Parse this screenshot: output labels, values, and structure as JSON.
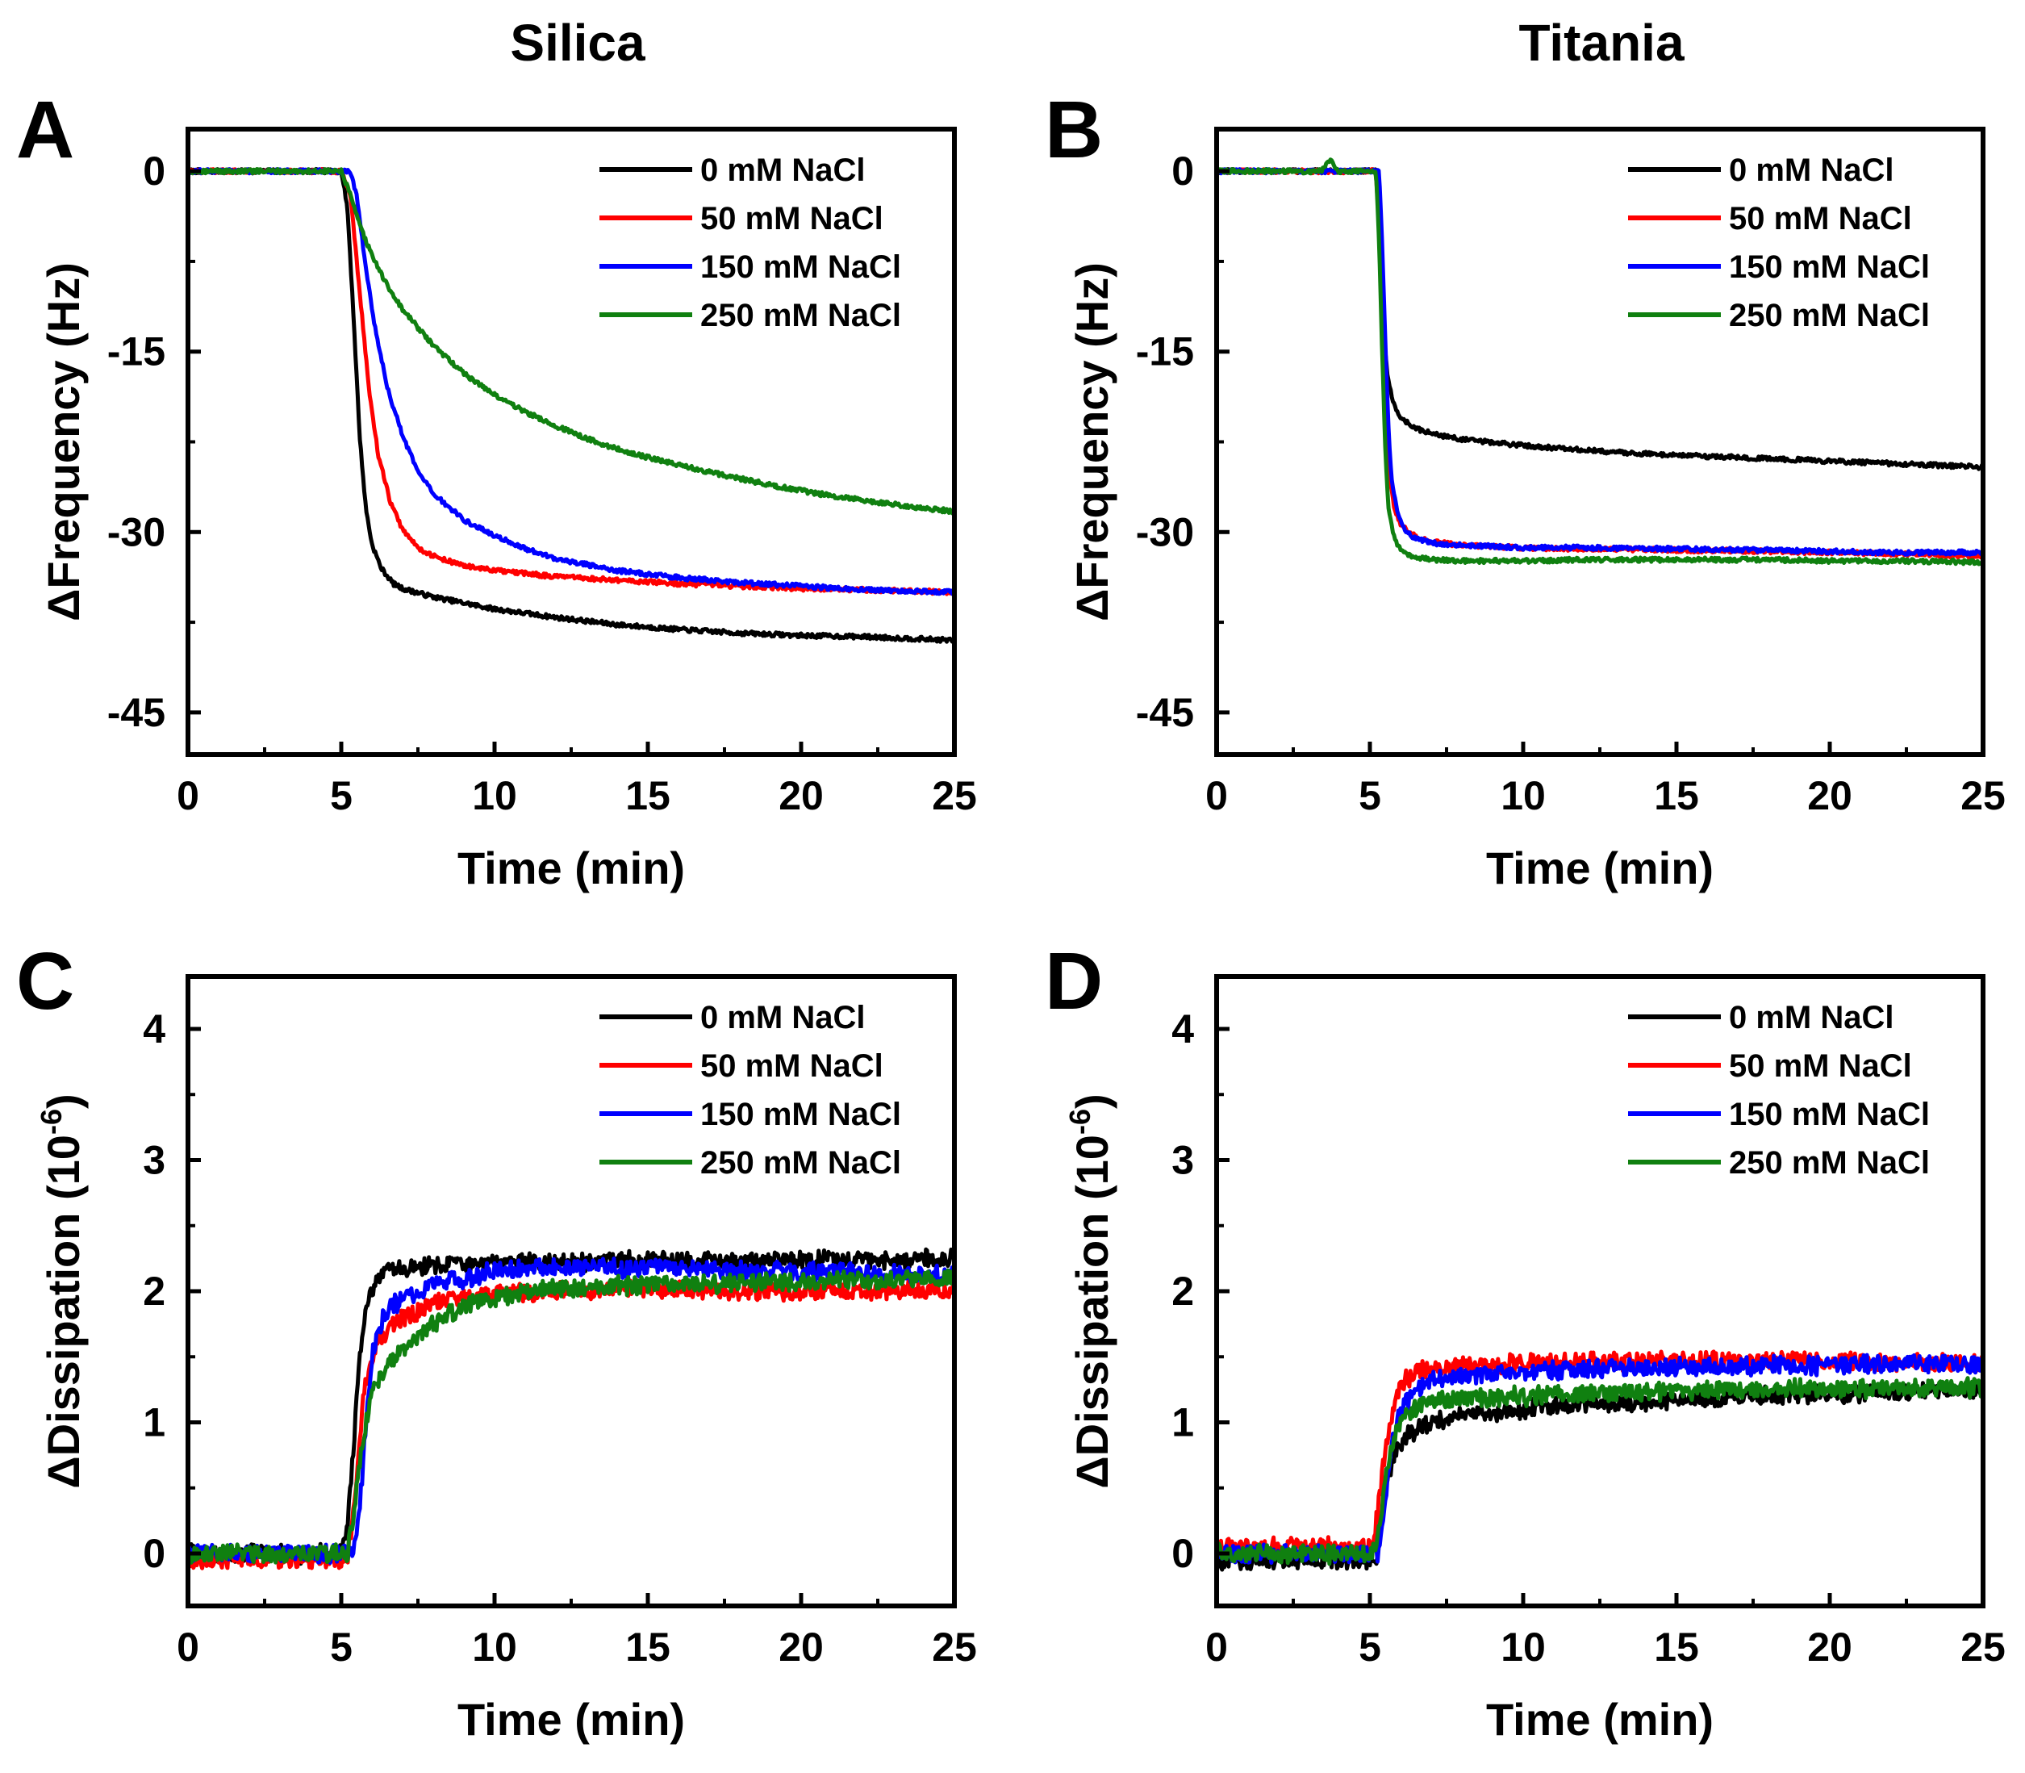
{
  "figure": {
    "column_titles": [
      "Silica",
      "Titania"
    ]
  },
  "legend_labels": [
    "0 mM NaCl",
    "50 mM NaCl",
    "150 mM NaCl",
    "250 mM NaCl"
  ],
  "series_colors": {
    "0 mM NaCl": "#000000",
    "50 mM NaCl": "#ff0000",
    "150 mM NaCl": "#0000ff",
    "250 mM NaCl": "#108010"
  },
  "chart_data": [
    {
      "panel": "A",
      "type": "line",
      "title": "Silica",
      "xlabel": "Time (min)",
      "ylabel": "ΔFrequency (Hz)",
      "xlim": [
        0,
        25
      ],
      "ylim": [
        -48.5,
        3.5
      ],
      "xticks": [
        0,
        5,
        10,
        15,
        20,
        25
      ],
      "yticks": [
        0,
        -15,
        -30,
        -45
      ],
      "legend_position": "top-right",
      "series": [
        {
          "name": "0 mM NaCl",
          "x": [
            0,
            5,
            5.2,
            5.4,
            5.6,
            5.8,
            6.0,
            6.3,
            6.7,
            7,
            8,
            9,
            10,
            12,
            14,
            16,
            18,
            20,
            22,
            24,
            25
          ],
          "values": [
            0,
            0,
            -3,
            -12,
            -22,
            -28,
            -31,
            -33,
            -34.3,
            -34.7,
            -35.4,
            -35.9,
            -36.4,
            -37.1,
            -37.7,
            -38.1,
            -38.4,
            -38.6,
            -38.7,
            -38.9,
            -39.0
          ]
        },
        {
          "name": "50 mM NaCl",
          "x": [
            0,
            5,
            5.3,
            5.6,
            5.9,
            6.2,
            6.6,
            7,
            7.5,
            8,
            9,
            10,
            12,
            14,
            16,
            18,
            20,
            22,
            25
          ],
          "values": [
            0,
            0,
            -2,
            -10,
            -18,
            -23.5,
            -27.5,
            -29.8,
            -31.3,
            -32.0,
            -32.8,
            -33.2,
            -33.7,
            -34.0,
            -34.3,
            -34.5,
            -34.7,
            -34.8,
            -35.0
          ]
        },
        {
          "name": "150 mM NaCl",
          "x": [
            0,
            5.3,
            5.5,
            5.8,
            6.1,
            6.5,
            7,
            7.5,
            8,
            9,
            10,
            11,
            12,
            14,
            16,
            18,
            20,
            22,
            25
          ],
          "values": [
            0,
            0,
            -2,
            -8,
            -13,
            -18,
            -22,
            -25,
            -26.8,
            -29.0,
            -30.3,
            -31.4,
            -32.2,
            -33.2,
            -33.8,
            -34.2,
            -34.5,
            -34.8,
            -35.0
          ]
        },
        {
          "name": "250 mM NaCl",
          "x": [
            0,
            5,
            5.3,
            5.6,
            6.0,
            6.5,
            7,
            8,
            9,
            10,
            11,
            12,
            13,
            14,
            15,
            17,
            19,
            21,
            23,
            25
          ],
          "values": [
            0,
            0,
            -2,
            -4.5,
            -7,
            -9.5,
            -11.5,
            -14.5,
            -16.8,
            -18.6,
            -20.0,
            -21.2,
            -22.2,
            -23.1,
            -23.8,
            -25.0,
            -26.1,
            -27.0,
            -27.7,
            -28.3
          ]
        }
      ]
    },
    {
      "panel": "B",
      "type": "line",
      "title": "Titania",
      "xlabel": "Time (min)",
      "ylabel": "ΔFrequency (Hz)",
      "xlim": [
        0,
        25
      ],
      "ylim": [
        -48.5,
        3.5
      ],
      "xticks": [
        0,
        5,
        10,
        15,
        20,
        25
      ],
      "yticks": [
        0,
        -15,
        -30,
        -45
      ],
      "legend_position": "top-right",
      "series": [
        {
          "name": "0 mM NaCl",
          "x": [
            0,
            5.2,
            5.3,
            5.4,
            5.5,
            5.6,
            5.8,
            6.0,
            6.5,
            7,
            8,
            10,
            12,
            14,
            16,
            18,
            20,
            22,
            25
          ],
          "values": [
            0,
            0,
            -4,
            -10,
            -15,
            -17.5,
            -19.5,
            -20.5,
            -21.4,
            -21.8,
            -22.3,
            -22.8,
            -23.2,
            -23.5,
            -23.7,
            -23.9,
            -24.1,
            -24.3,
            -24.6
          ]
        },
        {
          "name": "50 mM NaCl",
          "x": [
            0,
            5.2,
            5.3,
            5.4,
            5.5,
            5.6,
            5.8,
            6.0,
            6.3,
            6.6,
            7,
            8,
            10,
            12,
            15,
            18,
            20,
            22,
            25
          ],
          "values": [
            0,
            0,
            -5,
            -13,
            -20,
            -25,
            -28,
            -29.3,
            -30.1,
            -30.5,
            -30.8,
            -31.1,
            -31.3,
            -31.4,
            -31.5,
            -31.6,
            -31.7,
            -31.8,
            -32.0
          ]
        },
        {
          "name": "150 mM NaCl",
          "x": [
            0,
            5.3,
            5.4,
            5.5,
            5.6,
            5.7,
            5.9,
            6.1,
            6.4,
            6.7,
            7,
            8,
            10,
            12,
            15,
            18,
            20,
            22,
            25
          ],
          "values": [
            0,
            0,
            -6,
            -14,
            -21,
            -25.5,
            -28.5,
            -29.7,
            -30.4,
            -30.7,
            -30.9,
            -31.1,
            -31.3,
            -31.3,
            -31.4,
            -31.5,
            -31.6,
            -31.7,
            -31.7
          ]
        },
        {
          "name": "250 mM NaCl",
          "x": [
            0,
            3.4,
            3.7,
            4.0,
            5.2,
            5.3,
            5.4,
            5.5,
            5.6,
            5.8,
            6.0,
            6.3,
            7,
            8,
            10,
            12,
            15,
            18,
            20,
            22,
            25
          ],
          "values": [
            0,
            0,
            1.0,
            0,
            0,
            -6,
            -15,
            -23,
            -28,
            -30.5,
            -31.5,
            -32.0,
            -32.3,
            -32.4,
            -32.4,
            -32.3,
            -32.3,
            -32.3,
            -32.4,
            -32.4,
            -32.5
          ]
        }
      ]
    },
    {
      "panel": "C",
      "type": "line",
      "title": "",
      "xlabel": "Time (min)",
      "ylabel": "ΔDissipation (10⁻⁶)",
      "xlim": [
        0,
        25
      ],
      "ylim": [
        -0.4,
        4.4
      ],
      "xticks": [
        0,
        5,
        10,
        15,
        20,
        25
      ],
      "yticks": [
        0,
        1,
        2,
        3,
        4
      ],
      "legend_position": "top-right",
      "series": [
        {
          "name": "0 mM NaCl",
          "x": [
            0,
            5,
            5.2,
            5.4,
            5.6,
            5.8,
            6.0,
            6.3,
            6.6,
            7,
            8,
            10,
            12,
            15,
            18,
            20,
            22,
            25
          ],
          "values": [
            0,
            0,
            0.2,
            0.8,
            1.5,
            1.85,
            2.0,
            2.1,
            2.15,
            2.18,
            2.2,
            2.22,
            2.22,
            2.23,
            2.23,
            2.23,
            2.24,
            2.24
          ]
        },
        {
          "name": "50 mM NaCl",
          "x": [
            0,
            5.2,
            5.4,
            5.6,
            5.8,
            6.0,
            6.3,
            6.7,
            7,
            7.5,
            8,
            9,
            10,
            12,
            15,
            18,
            20,
            22,
            25
          ],
          "values": [
            -0.05,
            -0.05,
            0.3,
            0.9,
            1.3,
            1.5,
            1.65,
            1.75,
            1.8,
            1.85,
            1.9,
            1.95,
            1.98,
            2.0,
            2.02,
            2.0,
            2.0,
            2.0,
            2.0
          ]
        },
        {
          "name": "150 mM NaCl",
          "x": [
            0,
            5.4,
            5.6,
            5.8,
            6.0,
            6.2,
            6.5,
            7,
            7.5,
            8,
            9,
            10,
            12,
            15,
            18,
            20,
            22,
            25
          ],
          "values": [
            0,
            0,
            0.3,
            1.0,
            1.5,
            1.7,
            1.85,
            1.95,
            2.0,
            2.05,
            2.1,
            2.15,
            2.18,
            2.18,
            2.16,
            2.15,
            2.14,
            2.12
          ]
        },
        {
          "name": "250 mM NaCl",
          "x": [
            0,
            5.2,
            5.4,
            5.6,
            5.8,
            6.0,
            6.3,
            6.6,
            7,
            7.5,
            8,
            8.5,
            9,
            10,
            11,
            12,
            15,
            18,
            20,
            22,
            25
          ],
          "values": [
            0,
            0,
            0.3,
            0.7,
            1.0,
            1.2,
            1.35,
            1.45,
            1.55,
            1.65,
            1.75,
            1.82,
            1.88,
            1.95,
            2.0,
            2.02,
            2.05,
            2.06,
            2.07,
            2.08,
            2.1
          ]
        }
      ]
    },
    {
      "panel": "D",
      "type": "line",
      "title": "",
      "xlabel": "Time (min)",
      "ylabel": "ΔDissipation (10⁻⁶)",
      "xlim": [
        0,
        25
      ],
      "ylim": [
        -0.4,
        4.4
      ],
      "xticks": [
        0,
        5,
        10,
        15,
        20,
        25
      ],
      "yticks": [
        0,
        1,
        2,
        3,
        4
      ],
      "legend_position": "top-right",
      "series": [
        {
          "name": "0 mM NaCl",
          "x": [
            0,
            5.2,
            5.4,
            5.6,
            5.8,
            6.0,
            6.3,
            6.6,
            7,
            8,
            10,
            12,
            14,
            16,
            18,
            20,
            22,
            25
          ],
          "values": [
            -0.05,
            -0.05,
            0.3,
            0.6,
            0.75,
            0.85,
            0.92,
            0.96,
            1.0,
            1.05,
            1.1,
            1.13,
            1.16,
            1.18,
            1.2,
            1.22,
            1.23,
            1.25
          ]
        },
        {
          "name": "50 mM NaCl",
          "x": [
            0,
            5.1,
            5.3,
            5.5,
            5.7,
            5.9,
            6.1,
            6.4,
            6.8,
            7.2,
            8,
            10,
            12,
            15,
            18,
            20,
            22,
            25
          ],
          "values": [
            0.05,
            0.05,
            0.4,
            0.8,
            1.05,
            1.2,
            1.3,
            1.37,
            1.4,
            1.42,
            1.43,
            1.45,
            1.46,
            1.47,
            1.47,
            1.47,
            1.46,
            1.45
          ]
        },
        {
          "name": "150 mM NaCl",
          "x": [
            0,
            5.3,
            5.5,
            5.7,
            5.9,
            6.1,
            6.4,
            6.8,
            7.2,
            8,
            10,
            12,
            15,
            18,
            20,
            22,
            25
          ],
          "values": [
            0,
            0,
            0.4,
            0.8,
            1.0,
            1.12,
            1.22,
            1.3,
            1.33,
            1.36,
            1.38,
            1.4,
            1.42,
            1.43,
            1.44,
            1.45,
            1.45
          ]
        },
        {
          "name": "250 mM NaCl",
          "x": [
            0,
            5.2,
            5.4,
            5.6,
            5.8,
            6.0,
            6.3,
            6.7,
            7,
            8,
            10,
            12,
            15,
            18,
            20,
            22,
            25
          ],
          "values": [
            0,
            0,
            0.35,
            0.7,
            0.9,
            1.0,
            1.08,
            1.13,
            1.15,
            1.18,
            1.2,
            1.22,
            1.24,
            1.25,
            1.26,
            1.26,
            1.27
          ]
        }
      ]
    }
  ]
}
